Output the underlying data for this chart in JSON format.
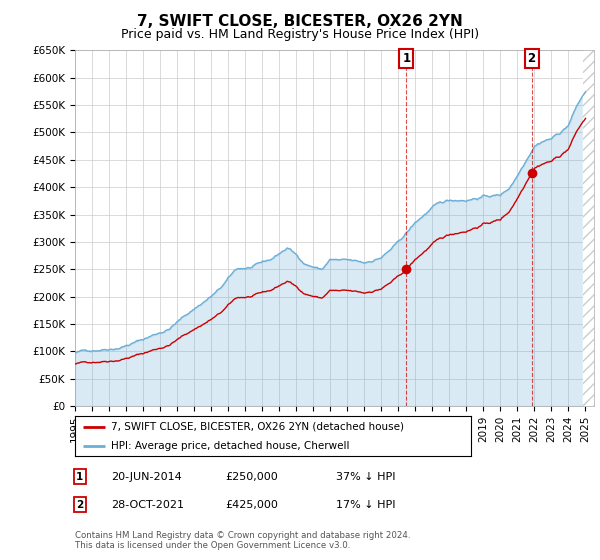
{
  "title": "7, SWIFT CLOSE, BICESTER, OX26 2YN",
  "subtitle": "Price paid vs. HM Land Registry's House Price Index (HPI)",
  "title_fontsize": 11,
  "subtitle_fontsize": 9,
  "ylim": [
    0,
    650000
  ],
  "yticks": [
    0,
    50000,
    100000,
    150000,
    200000,
    250000,
    300000,
    350000,
    400000,
    450000,
    500000,
    550000,
    600000,
    650000
  ],
  "ytick_labels": [
    "£0",
    "£50K",
    "£100K",
    "£150K",
    "£200K",
    "£250K",
    "£300K",
    "£350K",
    "£400K",
    "£450K",
    "£500K",
    "£550K",
    "£600K",
    "£650K"
  ],
  "xlim_start": 1995.0,
  "xlim_end": 2025.5,
  "hpi_color": "#6baed6",
  "hpi_fill_color": "#d6e8f5",
  "price_color": "#cc0000",
  "annotation_color": "#cc0000",
  "sale1_x": 2014.47,
  "sale1_y": 250000,
  "sale2_x": 2021.83,
  "sale2_y": 425000,
  "legend_line1": "7, SWIFT CLOSE, BICESTER, OX26 2YN (detached house)",
  "legend_line2": "HPI: Average price, detached house, Cherwell",
  "sale1_date": "20-JUN-2014",
  "sale1_price": "£250,000",
  "sale1_hpi": "37% ↓ HPI",
  "sale2_date": "28-OCT-2021",
  "sale2_price": "£425,000",
  "sale2_hpi": "17% ↓ HPI",
  "copyright": "Contains HM Land Registry data © Crown copyright and database right 2024.\nThis data is licensed under the Open Government Licence v3.0.",
  "background_color": "#ffffff",
  "grid_color": "#cccccc",
  "hatch_color": "#cccccc"
}
